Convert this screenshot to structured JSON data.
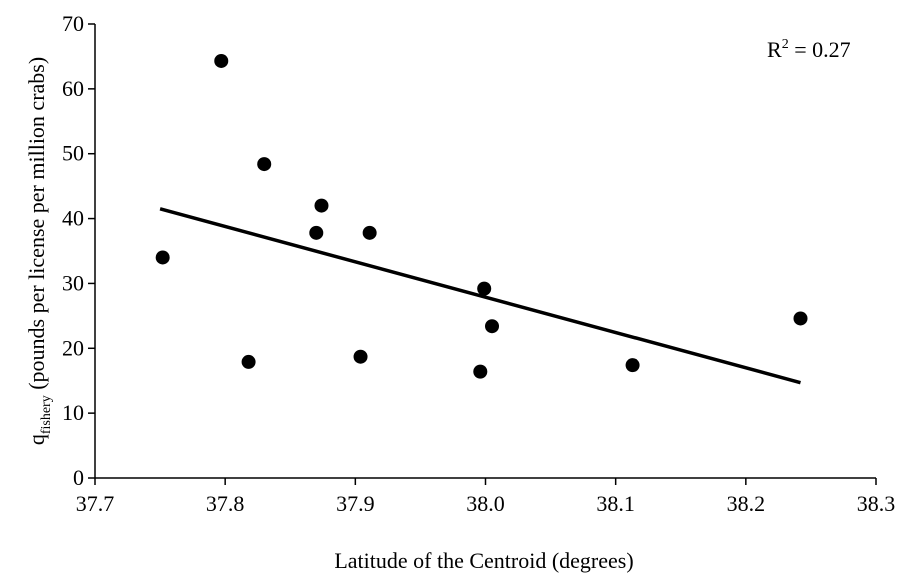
{
  "chart_data": {
    "type": "scatter",
    "xlabel": "Latitude of the Centroid (degrees)",
    "ylabel": {
      "main": "q",
      "subscript": "fishery",
      "rest": " (pounds per  license per million crabs)"
    },
    "xlim": [
      37.7,
      38.3
    ],
    "ylim": [
      0,
      70
    ],
    "x_ticks": [
      "37.7",
      "37.8",
      "37.9",
      "38.0",
      "38.1",
      "38.2",
      "38.3"
    ],
    "y_ticks": [
      "0",
      "10",
      "20",
      "30",
      "40",
      "50",
      "60",
      "70"
    ],
    "grid": false,
    "legend": "none",
    "annotation": {
      "prefix": "R",
      "superscript": "2",
      "suffix": " = 0.27"
    },
    "points": [
      {
        "x": 37.752,
        "y": 34.0
      },
      {
        "x": 37.797,
        "y": 64.3
      },
      {
        "x": 37.818,
        "y": 17.9
      },
      {
        "x": 37.83,
        "y": 48.4
      },
      {
        "x": 37.87,
        "y": 37.8
      },
      {
        "x": 37.874,
        "y": 42.0
      },
      {
        "x": 37.904,
        "y": 18.7
      },
      {
        "x": 37.911,
        "y": 37.8
      },
      {
        "x": 37.996,
        "y": 16.4
      },
      {
        "x": 37.999,
        "y": 29.2
      },
      {
        "x": 38.005,
        "y": 23.4
      },
      {
        "x": 38.113,
        "y": 17.4
      },
      {
        "x": 38.242,
        "y": 24.6
      }
    ],
    "trendline": {
      "x": [
        37.75,
        38.242
      ],
      "y": [
        41.5,
        14.7
      ]
    },
    "colors": {
      "marker": "#000000",
      "line": "#000000",
      "axis": "#000000"
    }
  }
}
